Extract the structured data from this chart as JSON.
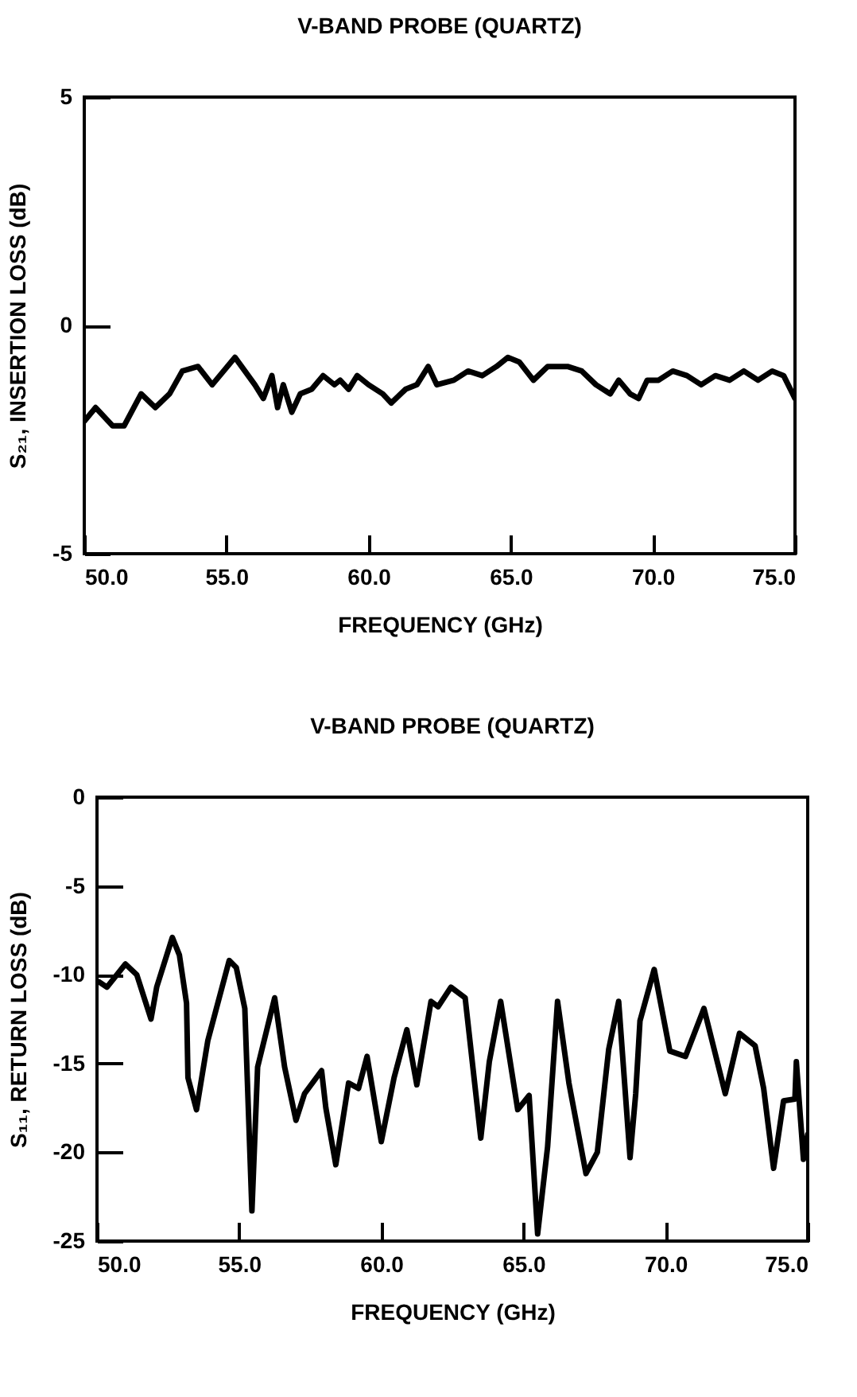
{
  "chart_data": [
    {
      "type": "line",
      "title": "V-BAND PROBE (QUARTZ)",
      "xlabel": "FREQUENCY (GHz)",
      "ylabel": "S₂₁, INSERTION LOSS (dB)",
      "color": "#000000",
      "xlim": [
        50,
        75
      ],
      "ylim": [
        -5,
        5
      ],
      "xticks": [
        {
          "value": 50,
          "label": "50.0"
        },
        {
          "value": 55,
          "label": "55.0"
        },
        {
          "value": 60,
          "label": "60.0"
        },
        {
          "value": 65,
          "label": "65.0"
        },
        {
          "value": 70,
          "label": "70.0"
        },
        {
          "value": 75,
          "label": "75.0"
        }
      ],
      "yticks": [
        -5,
        0,
        5
      ],
      "x": [
        50.0,
        50.4,
        51.0,
        51.4,
        52.0,
        52.5,
        53.0,
        53.45,
        54.0,
        54.5,
        55.3,
        56.0,
        56.3,
        56.6,
        56.8,
        57.0,
        57.3,
        57.6,
        58.0,
        58.4,
        58.8,
        59.0,
        59.3,
        59.6,
        60.0,
        60.5,
        60.8,
        61.3,
        61.7,
        62.1,
        62.4,
        63.0,
        63.5,
        64.0,
        64.5,
        64.9,
        65.3,
        65.8,
        66.3,
        67.0,
        67.5,
        68.0,
        68.5,
        68.8,
        69.2,
        69.5,
        69.8,
        70.2,
        70.7,
        71.2,
        71.7,
        72.2,
        72.7,
        73.2,
        73.7,
        74.2,
        74.6,
        75.0
      ],
      "values": [
        -2.1,
        -1.8,
        -2.2,
        -2.2,
        -1.5,
        -1.8,
        -1.5,
        -1.0,
        -0.9,
        -1.3,
        -0.7,
        -1.3,
        -1.6,
        -1.1,
        -1.8,
        -1.3,
        -1.9,
        -1.5,
        -1.4,
        -1.1,
        -1.3,
        -1.2,
        -1.4,
        -1.1,
        -1.3,
        -1.5,
        -1.7,
        -1.4,
        -1.3,
        -0.9,
        -1.3,
        -1.2,
        -1.0,
        -1.1,
        -0.9,
        -0.7,
        -0.8,
        -1.2,
        -0.9,
        -0.9,
        -1.0,
        -1.3,
        -1.5,
        -1.2,
        -1.5,
        -1.6,
        -1.2,
        -1.2,
        -1.0,
        -1.1,
        -1.3,
        -1.1,
        -1.2,
        -1.0,
        -1.2,
        -1.0,
        -1.1,
        -1.6
      ]
    },
    {
      "type": "line",
      "title": "V-BAND PROBE (QUARTZ)",
      "xlabel": "FREQUENCY (GHz)",
      "ylabel": "S₁₁, RETURN LOSS (dB)",
      "color": "#000000",
      "xlim": [
        50,
        75
      ],
      "ylim": [
        -25,
        0
      ],
      "xticks": [
        {
          "value": 50,
          "label": "50.0"
        },
        {
          "value": 55,
          "label": "55.0"
        },
        {
          "value": 60,
          "label": "60.0"
        },
        {
          "value": 65,
          "label": "65.0"
        },
        {
          "value": 70,
          "label": "70.0"
        },
        {
          "value": 75,
          "label": "75.0"
        }
      ],
      "yticks": [
        -25,
        -20,
        -15,
        -10,
        -5,
        0
      ],
      "x": [
        50.07,
        50.35,
        51.0,
        51.4,
        51.9,
        52.1,
        52.65,
        52.9,
        53.15,
        53.2,
        53.5,
        53.9,
        54.65,
        54.9,
        55.2,
        55.45,
        55.65,
        56.25,
        56.6,
        57.0,
        57.3,
        57.9,
        58.05,
        58.4,
        58.85,
        59.2,
        59.5,
        60.0,
        60.45,
        60.9,
        61.25,
        61.75,
        62.0,
        62.45,
        62.95,
        63.5,
        63.8,
        64.2,
        64.8,
        65.2,
        65.5,
        65.85,
        66.2,
        66.6,
        67.2,
        67.6,
        68.0,
        68.35,
        68.75,
        68.95,
        69.1,
        69.6,
        70.15,
        70.7,
        71.35,
        72.1,
        72.6,
        73.15,
        73.45,
        73.8,
        74.15,
        74.55,
        74.6,
        74.85,
        75.0
      ],
      "values": [
        -10.4,
        -10.7,
        -9.4,
        -10.0,
        -12.5,
        -10.7,
        -7.9,
        -8.9,
        -11.6,
        -15.8,
        -17.6,
        -13.7,
        -9.2,
        -9.6,
        -11.9,
        -23.3,
        -15.2,
        -11.3,
        -15.2,
        -18.2,
        -16.7,
        -15.4,
        -17.5,
        -20.7,
        -16.1,
        -16.4,
        -14.6,
        -19.4,
        -15.8,
        -13.1,
        -16.2,
        -11.5,
        -11.8,
        -10.7,
        -11.3,
        -19.2,
        -14.9,
        -11.5,
        -17.6,
        -16.8,
        -24.6,
        -19.7,
        -11.5,
        -16.1,
        -21.2,
        -20.0,
        -14.2,
        -11.5,
        -20.3,
        -16.7,
        -12.6,
        -9.7,
        -14.3,
        -14.6,
        -11.9,
        -16.7,
        -13.3,
        -14.0,
        -16.4,
        -20.9,
        -17.1,
        -17.0,
        -14.9,
        -20.4,
        -19.0
      ]
    }
  ]
}
